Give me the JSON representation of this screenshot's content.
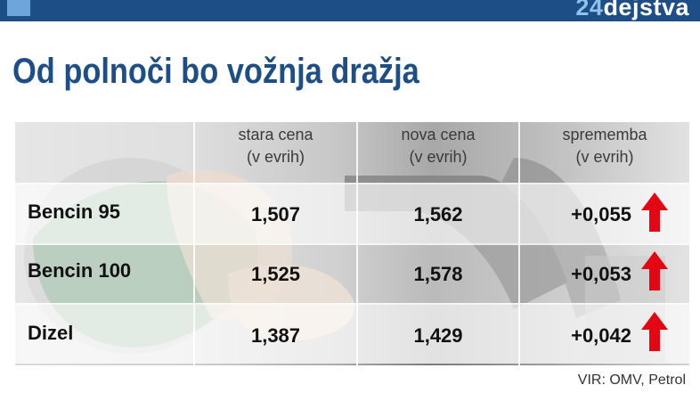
{
  "brand": {
    "number": "24",
    "word": "dejstva"
  },
  "title": "Od polnoči bo vožnja dražja",
  "columns": [
    {
      "line1": "stara cena",
      "line2": "(v evrih)"
    },
    {
      "line1": "nova cena",
      "line2": "(v evrih)"
    },
    {
      "line1": "sprememba",
      "line2": "(v evrih)"
    }
  ],
  "rows": [
    {
      "fuel": "Bencin 95",
      "old_price": "1,507",
      "new_price": "1,562",
      "change": "+0,055",
      "trend_icon": "up-arrow-icon"
    },
    {
      "fuel": "Bencin 100",
      "old_price": "1,525",
      "new_price": "1,578",
      "change": "+0,053",
      "trend_icon": "up-arrow-icon"
    },
    {
      "fuel": "Dizel",
      "old_price": "1,387",
      "new_price": "1,429",
      "change": "+0,042",
      "trend_icon": "up-arrow-icon"
    }
  ],
  "source": "VIR: OMV, Petrol",
  "colors": {
    "brand_blue": "#1d4f86",
    "accent_blue": "#6ea6dc",
    "arrow_red": "#e30613"
  }
}
